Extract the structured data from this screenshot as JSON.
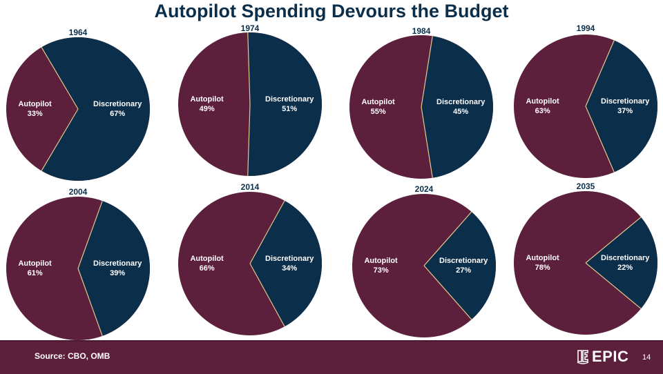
{
  "title": "Autopilot Spending Devours the Budget",
  "colors": {
    "autopilot": "#5c1f3c",
    "discretionary": "#0b2e4a",
    "divider": "#e6c98f"
  },
  "chart_data": [
    {
      "type": "pie",
      "title": "1964",
      "categories": [
        "Autopilot",
        "Discretionary"
      ],
      "values": [
        33,
        67
      ],
      "labels": [
        "33%",
        "67%"
      ]
    },
    {
      "type": "pie",
      "title": "1974",
      "categories": [
        "Autopilot",
        "Discretionary"
      ],
      "values": [
        49,
        51
      ],
      "labels": [
        "49%",
        "51%"
      ]
    },
    {
      "type": "pie",
      "title": "1984",
      "categories": [
        "Autopilot",
        "Discretionary"
      ],
      "values": [
        55,
        45
      ],
      "labels": [
        "55%",
        "45%"
      ]
    },
    {
      "type": "pie",
      "title": "1994",
      "categories": [
        "Autopilot",
        "Discretionary"
      ],
      "values": [
        63,
        37
      ],
      "labels": [
        "63%",
        "37%"
      ]
    },
    {
      "type": "pie",
      "title": "2004",
      "categories": [
        "Autopilot",
        "Discretionary"
      ],
      "values": [
        61,
        39
      ],
      "labels": [
        "61%",
        "39%"
      ]
    },
    {
      "type": "pie",
      "title": "2014",
      "categories": [
        "Autopilot",
        "Discretionary"
      ],
      "values": [
        66,
        34
      ],
      "labels": [
        "66%",
        "34%"
      ]
    },
    {
      "type": "pie",
      "title": "2024",
      "categories": [
        "Autopilot",
        "Discretionary"
      ],
      "values": [
        73,
        27
      ],
      "labels": [
        "73%",
        "27%"
      ]
    },
    {
      "type": "pie",
      "title": "2035",
      "categories": [
        "Autopilot",
        "Discretionary"
      ],
      "values": [
        78,
        22
      ],
      "labels": [
        "78%",
        "22%"
      ]
    }
  ],
  "footer": {
    "source": "Source: CBO, OMB",
    "logo_text": "EPIC",
    "page_number": "14"
  }
}
